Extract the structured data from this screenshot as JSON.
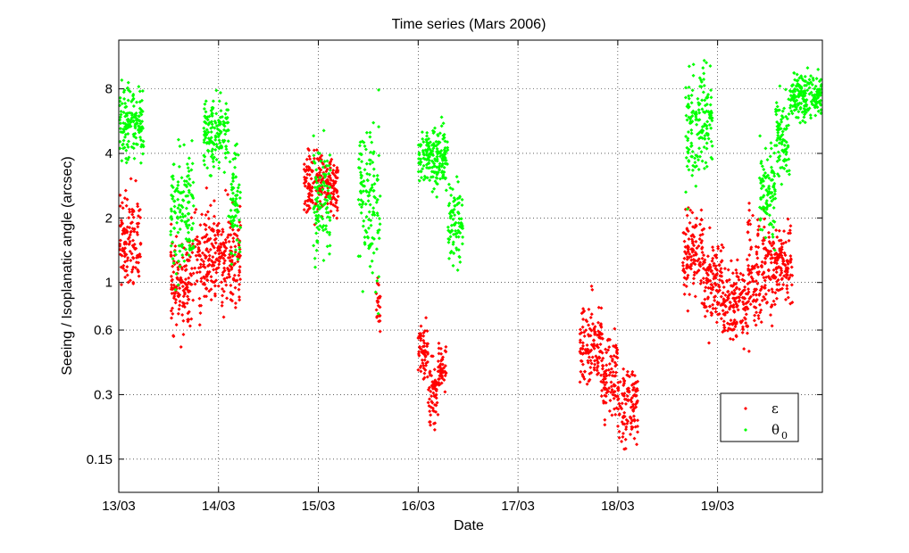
{
  "chart_data": {
    "type": "scatter",
    "title": "Time series (Mars 2006)",
    "xlabel": "Date",
    "ylabel": "Seeing / Isoplanatic angle (arcsec)",
    "x_unit": "day of March 2006",
    "xlim": [
      13,
      20.05
    ],
    "ylim": [
      0.105,
      13.5
    ],
    "yscale": "log",
    "grid": true,
    "x_ticks": [
      {
        "value": 13,
        "label": "13/03"
      },
      {
        "value": 14,
        "label": "14/03"
      },
      {
        "value": 15,
        "label": "15/03"
      },
      {
        "value": 16,
        "label": "16/03"
      },
      {
        "value": 17,
        "label": "17/03"
      },
      {
        "value": 18,
        "label": "18/03"
      },
      {
        "value": 19,
        "label": "19/03"
      }
    ],
    "y_ticks": [
      {
        "value": 0.15,
        "label": "0.15"
      },
      {
        "value": 0.3,
        "label": "0.3"
      },
      {
        "value": 0.6,
        "label": "0.6"
      },
      {
        "value": 1,
        "label": "1"
      },
      {
        "value": 2,
        "label": "2"
      },
      {
        "value": 4,
        "label": "4"
      },
      {
        "value": 8,
        "label": "8"
      }
    ],
    "legend": {
      "position": "bottom-right",
      "entries": [
        {
          "label": "ε",
          "subscript": "",
          "color": "#ff0000"
        },
        {
          "label": "θ",
          "subscript": "0",
          "color": "#00ff00"
        }
      ]
    },
    "series": [
      {
        "color": "#ff0000",
        "marker": "diamond",
        "segments": [
          {
            "x_start": 13.0,
            "x_end": 13.22,
            "y_center": 1.55,
            "spread": 0.24
          },
          {
            "x_start": 13.52,
            "x_end": 13.75,
            "y_center": 1.0,
            "spread": 0.26
          },
          {
            "x_start": 13.76,
            "x_end": 14.22,
            "y_center": 1.3,
            "spread": 0.26
          },
          {
            "x_start": 14.85,
            "x_end": 15.2,
            "y_center": 2.9,
            "spread": 0.17
          },
          {
            "x_start": 15.58,
            "x_end": 15.62,
            "y_center": 0.82,
            "spread": 0.12
          },
          {
            "x_start": 16.0,
            "x_end": 16.1,
            "y_center": 0.48,
            "spread": 0.15
          },
          {
            "x_start": 16.1,
            "x_end": 16.2,
            "y_center": 0.3,
            "spread": 0.15
          },
          {
            "x_start": 16.2,
            "x_end": 16.28,
            "y_center": 0.4,
            "spread": 0.1
          },
          {
            "x_start": 17.62,
            "x_end": 17.85,
            "y_center": 0.5,
            "spread": 0.24
          },
          {
            "x_start": 17.85,
            "x_end": 18.0,
            "y_center": 0.36,
            "spread": 0.22
          },
          {
            "x_start": 18.0,
            "x_end": 18.2,
            "y_center": 0.27,
            "spread": 0.22
          },
          {
            "x_start": 18.65,
            "x_end": 18.85,
            "y_center": 1.35,
            "spread": 0.24
          },
          {
            "x_start": 18.85,
            "x_end": 19.05,
            "y_center": 1.0,
            "spread": 0.22
          },
          {
            "x_start": 19.05,
            "x_end": 19.3,
            "y_center": 0.8,
            "spread": 0.22
          },
          {
            "x_start": 19.3,
            "x_end": 19.55,
            "y_center": 1.1,
            "spread": 0.3
          },
          {
            "x_start": 19.55,
            "x_end": 19.75,
            "y_center": 1.2,
            "spread": 0.2
          }
        ]
      },
      {
        "color": "#00ff00",
        "marker": "diamond",
        "segments": [
          {
            "x_start": 13.0,
            "x_end": 13.25,
            "y_center": 5.6,
            "spread": 0.2
          },
          {
            "x_start": 13.52,
            "x_end": 13.75,
            "y_center": 2.1,
            "spread": 0.32
          },
          {
            "x_start": 13.85,
            "x_end": 14.1,
            "y_center": 4.9,
            "spread": 0.2
          },
          {
            "x_start": 14.1,
            "x_end": 14.22,
            "y_center": 2.4,
            "spread": 0.3
          },
          {
            "x_start": 14.95,
            "x_end": 15.12,
            "y_center": 2.4,
            "spread": 0.34
          },
          {
            "x_start": 15.4,
            "x_end": 15.62,
            "y_center": 2.5,
            "spread": 0.45
          },
          {
            "x_start": 16.0,
            "x_end": 16.3,
            "y_center": 3.9,
            "spread": 0.18
          },
          {
            "x_start": 16.3,
            "x_end": 16.45,
            "y_center": 1.9,
            "spread": 0.2
          },
          {
            "x_start": 18.68,
            "x_end": 18.82,
            "y_center": 5.2,
            "spread": 0.32
          },
          {
            "x_start": 18.82,
            "x_end": 18.95,
            "y_center": 5.3,
            "spread": 0.28
          },
          {
            "x_start": 19.42,
            "x_end": 19.58,
            "y_center": 2.8,
            "spread": 0.28
          },
          {
            "x_start": 19.58,
            "x_end": 19.72,
            "y_center": 5.0,
            "spread": 0.22
          },
          {
            "x_start": 19.72,
            "x_end": 20.05,
            "y_center": 7.5,
            "spread": 0.12
          }
        ]
      }
    ]
  }
}
